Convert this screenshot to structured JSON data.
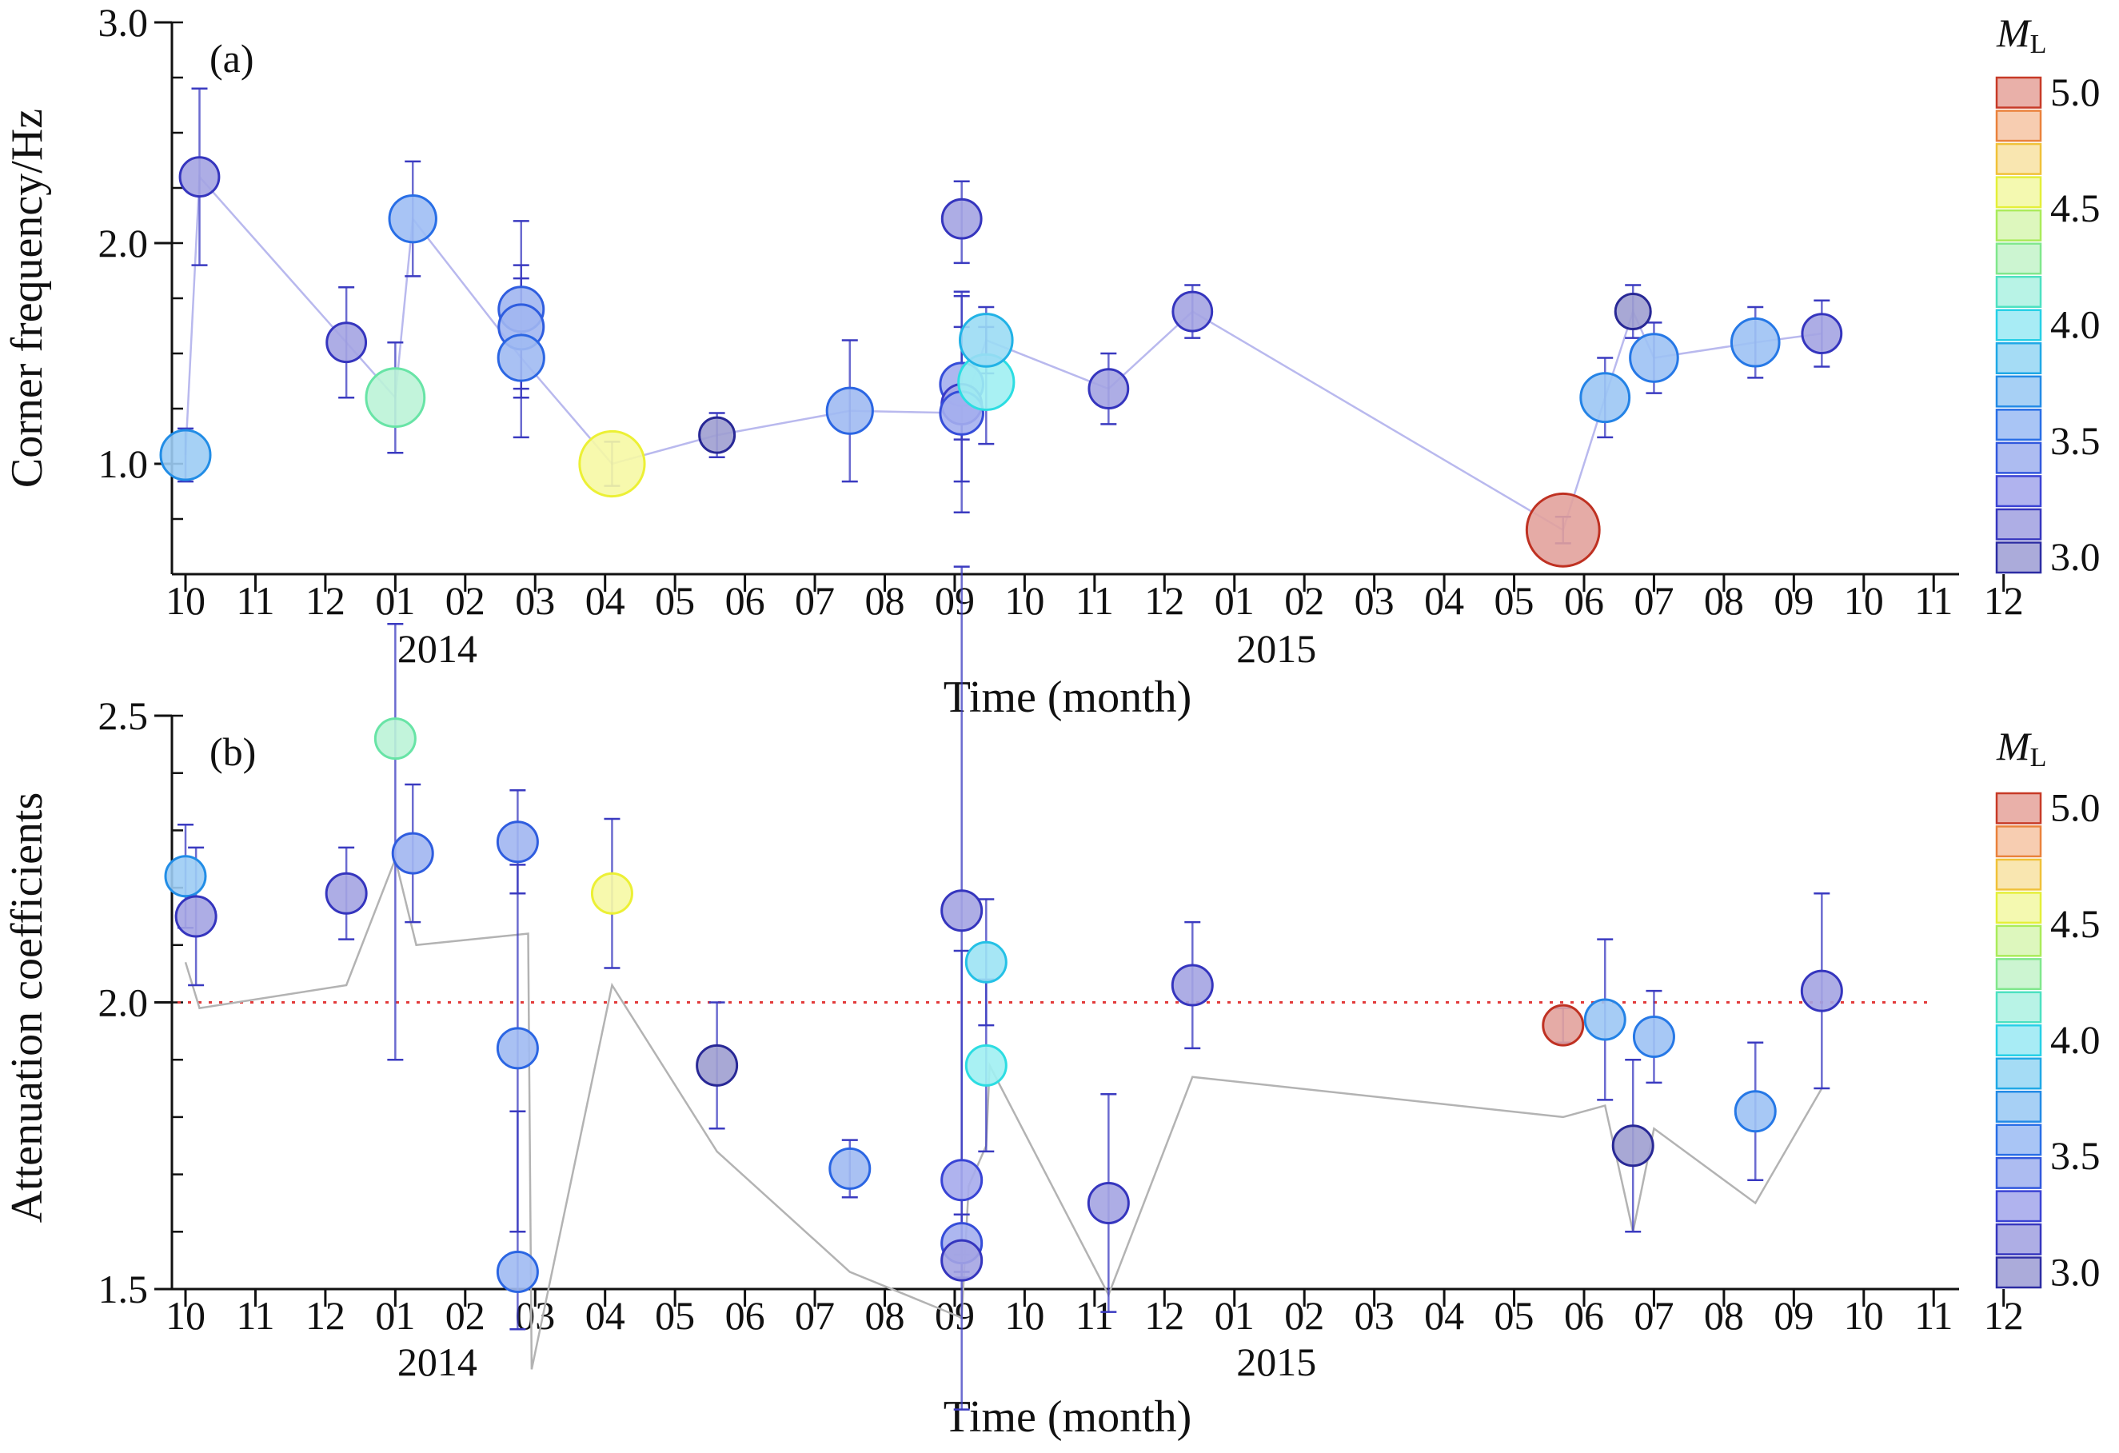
{
  "chart_data": [
    {
      "panel": "(a)",
      "type": "scatter",
      "xlabel": "Time (month)",
      "ylabel": "Corner frequency/Hz",
      "ylim": [
        0.5,
        3.0
      ],
      "yticks": [
        "1.0",
        "2.0",
        "3.0"
      ],
      "x_tick_labels": [
        "10",
        "11",
        "12",
        "01",
        "02",
        "03",
        "04",
        "05",
        "06",
        "07",
        "08",
        "09",
        "10",
        "11",
        "12",
        "01",
        "02",
        "03",
        "04",
        "05",
        "06",
        "07",
        "08",
        "09",
        "10",
        "11",
        "12"
      ],
      "x_year_labels": [
        {
          "label": "2014",
          "month_index": 3.6
        },
        {
          "label": "2015",
          "month_index": 15.6
        }
      ],
      "points": [
        {
          "x": 0.0,
          "y": 1.04,
          "err_lo": 0.12,
          "err_hi": 0.12,
          "ml": 3.75
        },
        {
          "x": 0.2,
          "y": 2.3,
          "err_lo": 0.4,
          "err_hi": 0.4,
          "ml": 3.2
        },
        {
          "x": 2.3,
          "y": 1.55,
          "err_lo": 0.25,
          "err_hi": 0.25,
          "ml": 3.2
        },
        {
          "x": 3.0,
          "y": 1.3,
          "err_lo": 0.25,
          "err_hi": 0.25,
          "ml": 4.2
        },
        {
          "x": 3.25,
          "y": 2.11,
          "err_lo": 0.26,
          "err_hi": 0.26,
          "ml": 3.6
        },
        {
          "x": 4.8,
          "y": 1.7,
          "err_lo": 0.4,
          "err_hi": 0.4,
          "ml": 3.5
        },
        {
          "x": 4.8,
          "y": 1.62,
          "err_lo": 0.28,
          "err_hi": 0.28,
          "ml": 3.5
        },
        {
          "x": 4.8,
          "y": 1.48,
          "err_lo": 0.36,
          "err_hi": 0.36,
          "ml": 3.55
        },
        {
          "x": 6.1,
          "y": 1.0,
          "err_lo": 0.1,
          "err_hi": 0.1,
          "ml": 4.55
        },
        {
          "x": 7.6,
          "y": 1.13,
          "err_lo": 0.1,
          "err_hi": 0.1,
          "ml": 3.0
        },
        {
          "x": 9.5,
          "y": 1.24,
          "err_lo": 0.32,
          "err_hi": 0.32,
          "ml": 3.55
        },
        {
          "x": 11.1,
          "y": 2.11,
          "err_lo": 0.2,
          "err_hi": 0.17,
          "ml": 3.2
        },
        {
          "x": 11.1,
          "y": 1.36,
          "err_lo": 0.25,
          "err_hi": 0.4,
          "ml": 3.4
        },
        {
          "x": 11.1,
          "y": 1.27,
          "err_lo": 0.35,
          "err_hi": 0.35,
          "ml": 3.25
        },
        {
          "x": 11.1,
          "y": 1.23,
          "err_lo": 0.45,
          "err_hi": 0.55,
          "ml": 3.4
        },
        {
          "x": 11.45,
          "y": 1.37,
          "err_lo": 0.28,
          "err_hi": 0.25,
          "ml": 4.05
        },
        {
          "x": 11.45,
          "y": 1.56,
          "err_lo": 0.15,
          "err_hi": 0.15,
          "ml": 3.9
        },
        {
          "x": 13.2,
          "y": 1.34,
          "err_lo": 0.16,
          "err_hi": 0.16,
          "ml": 3.2
        },
        {
          "x": 14.4,
          "y": 1.69,
          "err_lo": 0.12,
          "err_hi": 0.12,
          "ml": 3.2
        },
        {
          "x": 19.7,
          "y": 0.7,
          "err_lo": 0.06,
          "err_hi": 0.06,
          "ml": 4.95
        },
        {
          "x": 20.3,
          "y": 1.3,
          "err_lo": 0.18,
          "err_hi": 0.18,
          "ml": 3.7
        },
        {
          "x": 20.7,
          "y": 1.69,
          "err_lo": 0.12,
          "err_hi": 0.12,
          "ml": 3.0
        },
        {
          "x": 21.0,
          "y": 1.48,
          "err_lo": 0.16,
          "err_hi": 0.16,
          "ml": 3.65
        },
        {
          "x": 22.45,
          "y": 1.55,
          "err_lo": 0.16,
          "err_hi": 0.16,
          "ml": 3.65
        },
        {
          "x": 23.4,
          "y": 1.59,
          "err_lo": 0.15,
          "err_hi": 0.15,
          "ml": 3.2
        }
      ],
      "trend_line": [
        {
          "x": 0.0,
          "y": 1.04
        },
        {
          "x": 0.2,
          "y": 2.3
        },
        {
          "x": 2.3,
          "y": 1.55
        },
        {
          "x": 3.0,
          "y": 1.3
        },
        {
          "x": 3.25,
          "y": 2.11
        },
        {
          "x": 4.8,
          "y": 1.48
        },
        {
          "x": 6.1,
          "y": 1.0
        },
        {
          "x": 7.6,
          "y": 1.13
        },
        {
          "x": 9.5,
          "y": 1.24
        },
        {
          "x": 11.1,
          "y": 1.23
        },
        {
          "x": 11.45,
          "y": 1.56
        },
        {
          "x": 13.2,
          "y": 1.34
        },
        {
          "x": 14.4,
          "y": 1.69
        },
        {
          "x": 19.7,
          "y": 0.7
        },
        {
          "x": 20.3,
          "y": 1.3
        },
        {
          "x": 20.7,
          "y": 1.69
        },
        {
          "x": 21.0,
          "y": 1.48
        },
        {
          "x": 22.45,
          "y": 1.55
        },
        {
          "x": 23.4,
          "y": 1.59
        }
      ]
    },
    {
      "panel": "(b)",
      "type": "scatter",
      "xlabel": "Time (month)",
      "ylabel": "Attenuation coefficients",
      "ylim": [
        1.5,
        2.5
      ],
      "yticks": [
        "1.5",
        "2.0",
        "2.5"
      ],
      "reference_line_y": 2.0,
      "x_tick_labels": [
        "10",
        "11",
        "12",
        "01",
        "02",
        "03",
        "04",
        "05",
        "06",
        "07",
        "08",
        "09",
        "10",
        "11",
        "12",
        "01",
        "02",
        "03",
        "04",
        "05",
        "06",
        "07",
        "08",
        "09",
        "10",
        "11",
        "12"
      ],
      "x_year_labels": [
        {
          "label": "2014",
          "month_index": 3.6
        },
        {
          "label": "2015",
          "month_index": 15.6
        }
      ],
      "points": [
        {
          "x": 0.0,
          "y": 2.22,
          "err_lo": 0.09,
          "err_hi": 0.09,
          "ml": 3.75
        },
        {
          "x": 0.15,
          "y": 2.15,
          "err_lo": 0.12,
          "err_hi": 0.12,
          "ml": 3.2
        },
        {
          "x": 2.3,
          "y": 2.19,
          "err_lo": 0.08,
          "err_hi": 0.08,
          "ml": 3.2
        },
        {
          "x": 3.0,
          "y": 2.46,
          "err_lo": 0.56,
          "err_hi": 0.2,
          "ml": 4.2
        },
        {
          "x": 3.25,
          "y": 2.26,
          "err_lo": 0.12,
          "err_hi": 0.12,
          "ml": 3.5
        },
        {
          "x": 4.75,
          "y": 2.28,
          "err_lo": 0.09,
          "err_hi": 0.09,
          "ml": 3.5
        },
        {
          "x": 4.75,
          "y": 1.92,
          "err_lo": 0.32,
          "err_hi": 0.32,
          "ml": 3.55
        },
        {
          "x": 4.75,
          "y": 1.53,
          "err_lo": 0.1,
          "err_hi": 0.28,
          "ml": 3.55
        },
        {
          "x": 6.1,
          "y": 2.19,
          "err_lo": 0.13,
          "err_hi": 0.13,
          "ml": 4.55
        },
        {
          "x": 7.6,
          "y": 1.89,
          "err_lo": 0.11,
          "err_hi": 0.11,
          "ml": 3.0
        },
        {
          "x": 9.5,
          "y": 1.71,
          "err_lo": 0.05,
          "err_hi": 0.05,
          "ml": 3.55
        },
        {
          "x": 11.1,
          "y": 2.16,
          "err_lo": 0.6,
          "err_hi": 0.6,
          "ml": 3.2
        },
        {
          "x": 11.1,
          "y": 1.69,
          "err_lo": 0.4,
          "err_hi": 0.4,
          "ml": 3.35
        },
        {
          "x": 11.1,
          "y": 1.58,
          "err_lo": 0.05,
          "err_hi": 0.05,
          "ml": 3.4
        },
        {
          "x": 11.1,
          "y": 1.55,
          "err_lo": 0.03,
          "err_hi": 0.03,
          "ml": 3.2
        },
        {
          "x": 11.45,
          "y": 2.07,
          "err_lo": 0.11,
          "err_hi": 0.11,
          "ml": 3.95
        },
        {
          "x": 11.45,
          "y": 1.89,
          "err_lo": 0.15,
          "err_hi": 0.15,
          "ml": 4.05
        },
        {
          "x": 13.2,
          "y": 1.65,
          "err_lo": 0.19,
          "err_hi": 0.19,
          "ml": 3.2
        },
        {
          "x": 14.4,
          "y": 2.03,
          "err_lo": 0.11,
          "err_hi": 0.11,
          "ml": 3.2
        },
        {
          "x": 19.7,
          "y": 1.96,
          "err_lo": 0.03,
          "err_hi": 0.03,
          "ml": 4.95
        },
        {
          "x": 20.3,
          "y": 1.97,
          "err_lo": 0.14,
          "err_hi": 0.14,
          "ml": 3.7
        },
        {
          "x": 20.7,
          "y": 1.75,
          "err_lo": 0.15,
          "err_hi": 0.15,
          "ml": 3.0
        },
        {
          "x": 21.0,
          "y": 1.94,
          "err_lo": 0.08,
          "err_hi": 0.08,
          "ml": 3.65
        },
        {
          "x": 22.45,
          "y": 1.81,
          "err_lo": 0.12,
          "err_hi": 0.12,
          "ml": 3.65
        },
        {
          "x": 23.4,
          "y": 2.02,
          "err_lo": 0.17,
          "err_hi": 0.17,
          "ml": 3.2
        }
      ],
      "trend_line": [
        {
          "x": 0.0,
          "y": 2.07
        },
        {
          "x": 0.2,
          "y": 1.99
        },
        {
          "x": 2.3,
          "y": 2.03
        },
        {
          "x": 3.0,
          "y": 2.25
        },
        {
          "x": 3.3,
          "y": 2.1
        },
        {
          "x": 4.9,
          "y": 2.12
        },
        {
          "x": 4.95,
          "y": 1.36
        },
        {
          "x": 6.1,
          "y": 2.03
        },
        {
          "x": 7.6,
          "y": 1.74
        },
        {
          "x": 9.5,
          "y": 1.53
        },
        {
          "x": 11.1,
          "y": 1.45
        },
        {
          "x": 11.2,
          "y": 1.68
        },
        {
          "x": 11.45,
          "y": 1.75
        },
        {
          "x": 11.5,
          "y": 1.89
        },
        {
          "x": 13.2,
          "y": 1.49
        },
        {
          "x": 14.4,
          "y": 1.87
        },
        {
          "x": 19.7,
          "y": 1.8
        },
        {
          "x": 20.3,
          "y": 1.82
        },
        {
          "x": 20.7,
          "y": 1.6
        },
        {
          "x": 21.0,
          "y": 1.78
        },
        {
          "x": 22.45,
          "y": 1.65
        },
        {
          "x": 23.4,
          "y": 1.85
        }
      ]
    }
  ],
  "colorbar": {
    "title_main": "M",
    "title_sub": "L",
    "labels": [
      "5.0",
      "4.5",
      "4.0",
      "3.5",
      "3.0"
    ],
    "range": [
      3.0,
      5.0
    ],
    "bins": 15
  },
  "colors": {
    "error_bar": "#3a3ac0",
    "trend_a": "#b9b9ee",
    "trend_b": "#b3b3b3",
    "ref_line": "#e23b3b"
  }
}
